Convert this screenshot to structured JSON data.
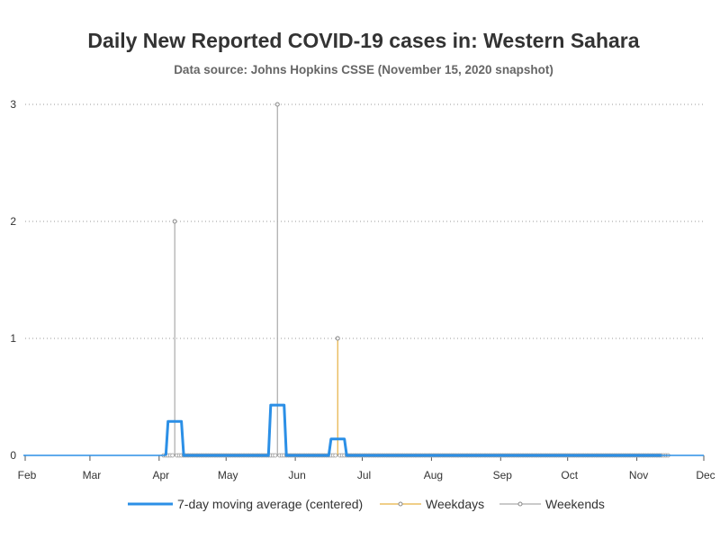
{
  "chart_data": {
    "type": "line",
    "title": "Daily New Reported COVID-19 cases in: Western Sahara",
    "subtitle": "Data source: Johns Hopkins CSSE (November 15, 2020 snapshot)",
    "xlabel": "",
    "ylabel": "",
    "xlim": [
      "2020-02-01",
      "2020-12-01"
    ],
    "ylim": [
      0,
      3
    ],
    "y_ticks": [
      0,
      1,
      2,
      3
    ],
    "x_ticks": [
      {
        "date": "2020-02-01",
        "label": "Feb"
      },
      {
        "date": "2020-03-01",
        "label": "Mar"
      },
      {
        "date": "2020-04-01",
        "label": "Apr"
      },
      {
        "date": "2020-05-01",
        "label": "May"
      },
      {
        "date": "2020-06-01",
        "label": "Jun"
      },
      {
        "date": "2020-07-01",
        "label": "Jul"
      },
      {
        "date": "2020-08-01",
        "label": "Aug"
      },
      {
        "date": "2020-09-01",
        "label": "Sep"
      },
      {
        "date": "2020-10-01",
        "label": "Oct"
      },
      {
        "date": "2020-11-01",
        "label": "Nov"
      },
      {
        "date": "2020-12-01",
        "label": "Dec"
      }
    ],
    "grid": {
      "horizontal": true,
      "style": "dotted"
    },
    "legend_position": "bottom",
    "series": [
      {
        "name": "7-day moving average (centered)",
        "kind": "line",
        "color": "#2b8fe6",
        "points": [
          [
            "2020-04-04",
            0
          ],
          [
            "2020-04-05",
            0.29
          ],
          [
            "2020-04-11",
            0.29
          ],
          [
            "2020-04-12",
            0
          ],
          [
            "2020-05-20",
            0
          ],
          [
            "2020-05-21",
            0.43
          ],
          [
            "2020-05-27",
            0.43
          ],
          [
            "2020-05-28",
            0
          ],
          [
            "2020-06-16",
            0
          ],
          [
            "2020-06-17",
            0.14
          ],
          [
            "2020-06-23",
            0.14
          ],
          [
            "2020-06-24",
            0
          ],
          [
            "2020-11-12",
            0
          ]
        ]
      },
      {
        "name": "Weekdays",
        "kind": "needle",
        "color": "#e6b040",
        "points": [
          [
            "2020-06-20",
            1
          ]
        ]
      },
      {
        "name": "Weekends",
        "kind": "needle",
        "color": "#aaaaaa",
        "points": [
          [
            "2020-04-08",
            2
          ],
          [
            "2020-05-24",
            3
          ]
        ]
      }
    ],
    "zero_markers": {
      "start": "2020-04-03",
      "end": "2020-11-15"
    }
  }
}
